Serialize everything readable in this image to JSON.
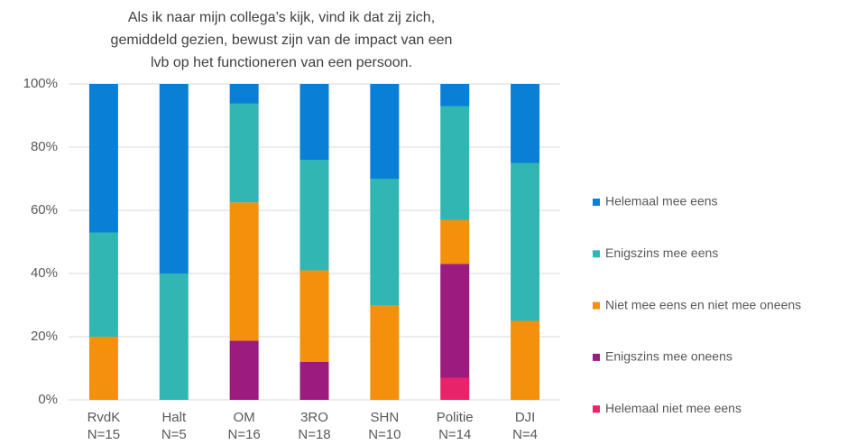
{
  "chart_data": {
    "type": "stacked_bar",
    "title": [
      "Als ik naar mijn collega’s kijk, vind ik dat zij zich,",
      "gemiddeld  gezien, bewust zijn van de impact van een",
      "lvb op het functioneren van een persoon."
    ],
    "categories": [
      [
        "RvdK",
        "N=15"
      ],
      [
        "Halt",
        "N=5"
      ],
      [
        "OM",
        "N=16"
      ],
      [
        "3RO",
        "N=18"
      ],
      [
        "SHN",
        "N=10"
      ],
      [
        "Politie",
        "N=14"
      ],
      [
        "DJI",
        "N=4"
      ]
    ],
    "series": [
      {
        "name": "Helemaal mee eens",
        "color": "#0a7fd6",
        "values": [
          47,
          60,
          6.25,
          24,
          30,
          7,
          25
        ]
      },
      {
        "name": "Enigszins mee eens",
        "color": "#32b6b4",
        "values": [
          33,
          40,
          31.25,
          35,
          40,
          36,
          50
        ]
      },
      {
        "name": "Niet mee eens en niet mee oneens",
        "color": "#f5900c",
        "values": [
          20,
          0,
          43.75,
          29,
          30,
          14,
          25
        ]
      },
      {
        "name": "Enigszins mee oneens",
        "color": "#9c1b7f",
        "values": [
          0,
          0,
          18.75,
          12,
          0,
          36,
          0
        ]
      },
      {
        "name": "Helemaal niet mee eens",
        "color": "#e8236a",
        "values": [
          0,
          0,
          0,
          0,
          0,
          7,
          0
        ]
      }
    ],
    "ylim": [
      0,
      100
    ],
    "yticks": [
      {
        "value": 0,
        "label": "0%"
      },
      {
        "value": 20,
        "label": "20%"
      },
      {
        "value": 40,
        "label": "40%"
      },
      {
        "value": 60,
        "label": "60%"
      },
      {
        "value": 80,
        "label": "80%"
      },
      {
        "value": 100,
        "label": "100%"
      }
    ],
    "grid": true,
    "legend": "right"
  }
}
